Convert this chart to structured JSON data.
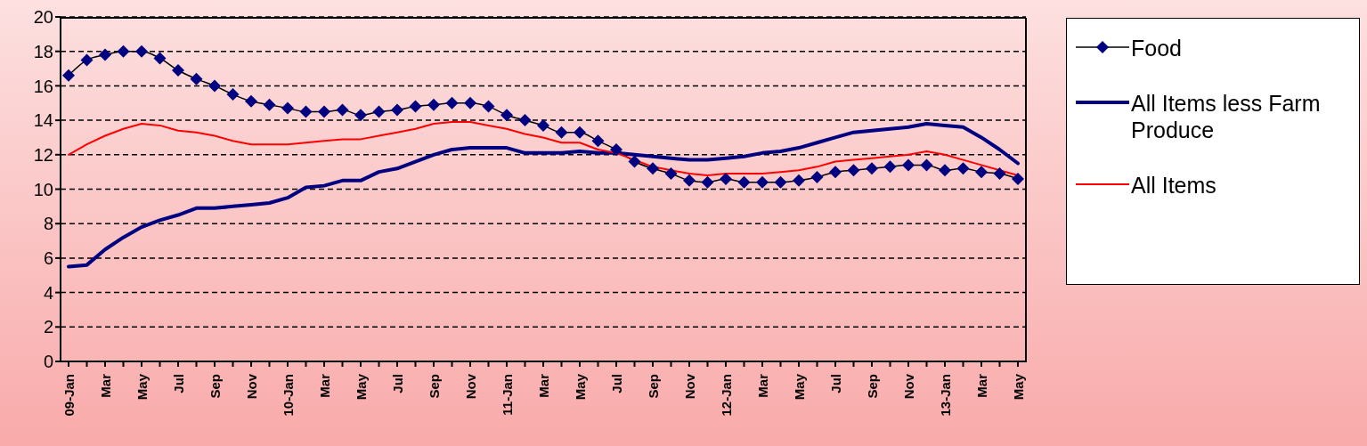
{
  "chart_data": {
    "type": "line",
    "categories": [
      "09-Jan",
      null,
      "Mar",
      null,
      "May",
      null,
      "Jul",
      null,
      "Sep",
      null,
      "Nov",
      null,
      "10-Jan",
      null,
      "Mar",
      null,
      "May",
      null,
      "Jul",
      null,
      "Sep",
      null,
      "Nov",
      null,
      "11-Jan",
      null,
      "Mar",
      null,
      "May",
      null,
      "Jul",
      null,
      "Sep",
      null,
      "Nov",
      null,
      "12-Jan",
      null,
      "Mar",
      null,
      "May",
      null,
      "Jul",
      null,
      "Sep",
      null,
      "Nov",
      null,
      "13-Jan",
      null,
      "Mar",
      null,
      "May"
    ],
    "series": [
      {
        "name": "Food",
        "color": "#000080",
        "marker": "diamond",
        "values": [
          16.6,
          17.5,
          17.8,
          18.0,
          18.0,
          17.6,
          16.9,
          16.4,
          16.0,
          15.5,
          15.1,
          14.9,
          14.7,
          14.5,
          14.5,
          14.6,
          14.3,
          14.5,
          14.6,
          14.8,
          14.9,
          15.0,
          15.0,
          14.8,
          14.3,
          14.0,
          13.7,
          13.3,
          13.3,
          12.8,
          12.3,
          11.6,
          11.2,
          10.9,
          10.5,
          10.4,
          10.6,
          10.4,
          10.4,
          10.4,
          10.5,
          10.7,
          11.0,
          11.1,
          11.2,
          11.3,
          11.4,
          11.4,
          11.1,
          11.2,
          11.0,
          10.9,
          10.6
        ]
      },
      {
        "name": "All Items less Farm Produce",
        "color": "#000080",
        "values": [
          5.5,
          5.6,
          6.5,
          7.2,
          7.8,
          8.2,
          8.5,
          8.9,
          8.9,
          9.0,
          9.1,
          9.2,
          9.5,
          10.1,
          10.2,
          10.5,
          10.5,
          11.0,
          11.2,
          11.6,
          12.0,
          12.3,
          12.4,
          12.4,
          12.4,
          12.1,
          12.1,
          12.1,
          12.2,
          12.1,
          12.1,
          12.0,
          11.9,
          11.8,
          11.7,
          11.7,
          11.8,
          11.9,
          12.1,
          12.2,
          12.4,
          12.7,
          13.0,
          13.3,
          13.4,
          13.5,
          13.6,
          13.8,
          13.7,
          13.6,
          13.0,
          12.3,
          11.5
        ]
      },
      {
        "name": "All Items",
        "color": "#ff0000",
        "values": [
          12.0,
          12.6,
          13.1,
          13.5,
          13.8,
          13.7,
          13.4,
          13.3,
          13.1,
          12.8,
          12.6,
          12.6,
          12.6,
          12.7,
          12.8,
          12.9,
          12.9,
          13.1,
          13.3,
          13.5,
          13.8,
          13.9,
          13.9,
          13.7,
          13.5,
          13.2,
          13.0,
          12.7,
          12.7,
          12.3,
          12.1,
          11.7,
          11.3,
          11.1,
          10.9,
          10.8,
          10.9,
          10.9,
          10.9,
          11.0,
          11.1,
          11.3,
          11.6,
          11.7,
          11.8,
          11.9,
          12.0,
          12.2,
          12.0,
          11.7,
          11.4,
          11.1,
          10.8
        ]
      }
    ],
    "ylim": [
      0,
      20
    ],
    "yticks": [
      0,
      2,
      4,
      6,
      8,
      10,
      12,
      14,
      16,
      18,
      20
    ],
    "grid": "y",
    "legend": "right"
  }
}
